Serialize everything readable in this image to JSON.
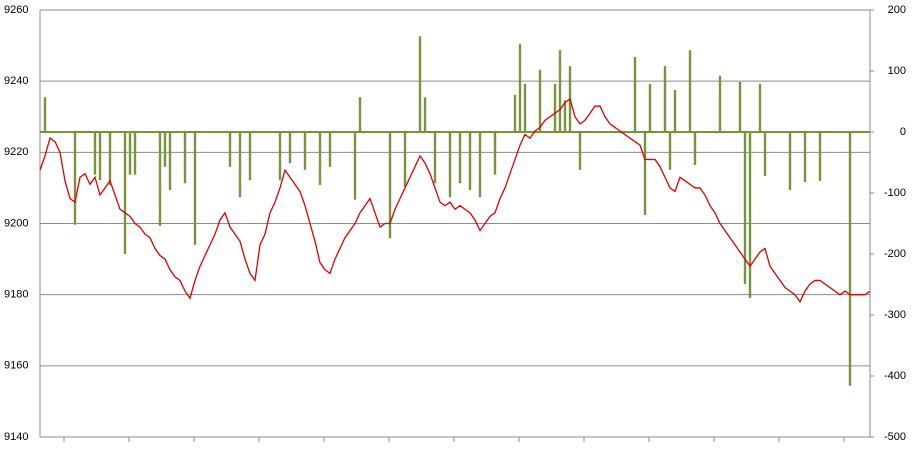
{
  "chart_data": {
    "type": "line-bar",
    "categories": [
      null,
      null,
      null,
      null,
      null,
      null,
      null,
      null,
      null,
      null,
      null,
      null,
      null,
      null,
      null,
      null,
      null,
      null,
      null,
      null,
      null,
      null,
      null,
      null,
      null,
      null,
      null,
      null,
      null,
      null,
      null,
      null,
      null,
      null,
      null,
      null,
      null,
      null,
      null,
      null,
      null,
      null,
      null,
      null,
      null,
      null,
      null,
      null,
      null,
      null,
      null,
      null,
      null,
      null,
      null,
      null,
      null,
      null,
      null,
      null,
      null,
      null,
      null,
      null,
      null,
      null,
      null,
      null,
      null,
      null,
      null,
      null,
      null,
      null,
      null,
      null,
      null,
      null,
      null,
      null,
      null,
      null,
      null,
      null,
      null,
      null,
      null,
      null,
      null,
      null,
      null,
      null,
      null,
      null,
      null,
      null,
      null,
      null,
      null,
      null,
      null,
      null,
      null,
      null,
      null,
      null,
      null,
      null,
      null,
      null,
      null,
      null,
      null,
      null,
      null,
      null,
      null,
      null,
      null,
      null,
      null,
      null,
      null,
      null,
      null,
      null,
      null,
      null,
      null,
      null,
      null,
      null,
      null,
      null,
      null,
      null,
      null,
      null,
      null,
      null,
      null,
      null,
      null,
      null,
      null,
      null,
      null,
      null,
      null,
      null,
      null,
      null,
      null,
      null,
      null,
      null,
      null,
      null,
      null,
      null,
      null,
      null,
      null,
      null,
      null,
      null,
      null
    ],
    "series": [
      {
        "type": "line",
        "color": "#e00000",
        "values": [
          9215,
          9219,
          9224,
          9223,
          9220,
          9212,
          9207,
          9206,
          9213,
          9214,
          9211,
          9213,
          9208,
          9210,
          9212,
          9208,
          9204,
          9203,
          9202,
          9200,
          9199,
          9197,
          9196,
          9193,
          9191,
          9190,
          9187,
          9185,
          9184,
          9181,
          9179,
          9184,
          9188,
          9191,
          9194,
          9197,
          9201,
          9203,
          9199,
          9197,
          9195,
          9190,
          9186,
          9184,
          9194,
          9197,
          9203,
          9206,
          9210,
          9215,
          9213,
          9211,
          9209,
          9205,
          9200,
          9195,
          9189,
          9187,
          9186,
          9190,
          9193,
          9196,
          9198,
          9200,
          9203,
          9205,
          9207,
          9203,
          9199,
          9200,
          9200,
          9204,
          9207,
          9210,
          9213,
          9216,
          9219,
          9217,
          9214,
          9210,
          9206,
          9205,
          9206,
          9204,
          9205,
          9204,
          9203,
          9201,
          9198,
          9200,
          9202,
          9203,
          9207,
          9210,
          9214,
          9218,
          9222,
          9225,
          9224,
          9226,
          9227,
          9229,
          9230,
          9231,
          9232,
          9234,
          9235,
          9230,
          9228,
          9229,
          9231,
          9233,
          9233,
          9230,
          9228,
          9227,
          9226,
          9225,
          9224,
          9223,
          9222,
          9218,
          9218,
          9218,
          9216,
          9213,
          9210,
          9209,
          9213,
          9212,
          9211,
          9210,
          9210,
          9208,
          9205,
          9203,
          9200,
          9198,
          9196,
          9194,
          9192,
          9190,
          9188,
          9190,
          9192,
          9193,
          9188,
          9186,
          9184,
          9182,
          9181,
          9180,
          9178,
          9181,
          9183,
          9184,
          9184,
          9183,
          9182,
          9181,
          9180,
          9181,
          9180,
          9180,
          9180,
          9180,
          9181
        ]
      },
      {
        "type": "bar",
        "axis": "y2",
        "color": "#77933c",
        "values": [
          0,
          57,
          0,
          0,
          0,
          0,
          0,
          -152,
          0,
          0,
          0,
          -70,
          -79,
          0,
          -87,
          0,
          0,
          -200,
          -70,
          -70,
          0,
          0,
          0,
          0,
          -154,
          -57,
          -95,
          0,
          0,
          -84,
          0,
          -185,
          0,
          0,
          0,
          0,
          0,
          0,
          -57,
          0,
          -107,
          0,
          -79,
          0,
          0,
          0,
          0,
          0,
          -79,
          0,
          -51,
          0,
          0,
          -62,
          0,
          0,
          -87,
          0,
          -57,
          0,
          0,
          0,
          0,
          -111,
          57,
          0,
          0,
          0,
          0,
          0,
          -174,
          0,
          0,
          -90,
          0,
          0,
          157,
          57,
          0,
          -84,
          0,
          0,
          -107,
          0,
          -84,
          0,
          -95,
          0,
          -107,
          0,
          0,
          -70,
          0,
          0,
          0,
          61,
          144,
          79,
          0,
          0,
          102,
          0,
          0,
          79,
          134,
          52,
          108,
          0,
          -62,
          0,
          0,
          0,
          0,
          0,
          0,
          0,
          0,
          0,
          0,
          123,
          0,
          -136,
          79,
          0,
          0,
          108,
          -62,
          69,
          0,
          0,
          134,
          -54,
          0,
          0,
          0,
          0,
          92,
          0,
          0,
          0,
          82,
          -249,
          -272,
          0,
          79,
          -72,
          0,
          0,
          0,
          0,
          -95,
          0,
          0,
          -82,
          0,
          0,
          -80,
          0,
          0,
          0,
          0,
          0,
          -416,
          0,
          0,
          0,
          0
        ]
      }
    ],
    "ylim": [
      9140,
      9260
    ],
    "yticks": [
      9140,
      9160,
      9180,
      9200,
      9220,
      9240,
      9260
    ],
    "y2lim": [
      -500,
      200
    ],
    "y2ticks": [
      -500,
      -400,
      -300,
      -200,
      -100,
      0,
      100,
      200
    ],
    "grid": true
  }
}
